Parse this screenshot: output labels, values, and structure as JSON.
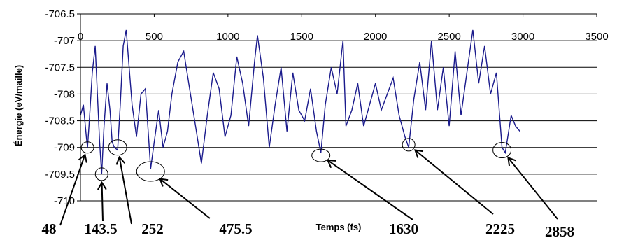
{
  "chart_data": {
    "type": "line",
    "xlabel": "Temps (fs)",
    "ylabel": "Énergie (eV/maille)",
    "xlim": [
      0,
      3500
    ],
    "ylim": [
      -710,
      -706.5
    ],
    "x_ticks": [
      "0",
      "500",
      "1000",
      "1500",
      "2000",
      "2500",
      "3000",
      "3500"
    ],
    "y_ticks": [
      "-706.5",
      "-707",
      "-707.5",
      "-708",
      "-708.5",
      "-709",
      "-709.5",
      "-710"
    ],
    "grid": "horizontal",
    "line_color": "#1a1a8c",
    "series": [
      {
        "x": [
          0,
          20,
          40,
          48,
          60,
          80,
          100,
          115,
          130,
          143.5,
          160,
          180,
          200,
          215,
          230,
          252,
          270,
          290,
          310,
          330,
          350,
          380,
          410,
          440,
          475.5,
          500,
          530,
          560,
          590,
          620,
          660,
          700,
          740,
          780,
          820,
          860,
          900,
          940,
          980,
          1020,
          1060,
          1100,
          1140,
          1180,
          1200,
          1240,
          1280,
          1320,
          1360,
          1400,
          1440,
          1480,
          1520,
          1560,
          1600,
          1630,
          1660,
          1700,
          1740,
          1780,
          1800,
          1840,
          1880,
          1920,
          1960,
          2000,
          2040,
          2080,
          2120,
          2160,
          2200,
          2225,
          2260,
          2300,
          2340,
          2380,
          2420,
          2460,
          2500,
          2540,
          2580,
          2620,
          2660,
          2700,
          2740,
          2780,
          2820,
          2858,
          2880,
          2920,
          2950,
          2980
        ],
        "y": [
          -708.4,
          -708.2,
          -708.8,
          -709.0,
          -708.5,
          -707.6,
          -707.1,
          -708.0,
          -708.9,
          -709.5,
          -708.6,
          -707.8,
          -708.3,
          -708.9,
          -709.0,
          -709.05,
          -708.2,
          -707.1,
          -706.8,
          -707.5,
          -708.2,
          -708.8,
          -708.0,
          -707.9,
          -709.4,
          -708.9,
          -708.3,
          -709.0,
          -708.7,
          -708.0,
          -707.4,
          -707.2,
          -707.9,
          -708.6,
          -709.3,
          -708.4,
          -707.6,
          -707.9,
          -708.8,
          -708.4,
          -707.3,
          -707.8,
          -708.6,
          -707.4,
          -706.9,
          -707.7,
          -709.0,
          -708.2,
          -707.5,
          -708.7,
          -707.6,
          -708.3,
          -708.5,
          -707.9,
          -708.7,
          -709.1,
          -708.2,
          -707.5,
          -708.0,
          -707.0,
          -708.6,
          -708.3,
          -707.8,
          -708.6,
          -708.2,
          -707.8,
          -708.3,
          -708.0,
          -707.7,
          -708.4,
          -708.8,
          -709.0,
          -708.1,
          -707.4,
          -708.3,
          -707.0,
          -708.3,
          -707.5,
          -708.6,
          -707.2,
          -708.4,
          -707.6,
          -706.8,
          -707.8,
          -707.1,
          -708.0,
          -707.6,
          -709.0,
          -709.1,
          -708.4,
          -708.6,
          -708.7
        ]
      }
    ],
    "annotations": [
      {
        "label": "48",
        "x": 48,
        "y": -709.0
      },
      {
        "label": "143.5",
        "x": 143.5,
        "y": -709.5
      },
      {
        "label": "252",
        "x": 252,
        "y": -709.0
      },
      {
        "label": "475.5",
        "x": 475.5,
        "y": -709.45
      },
      {
        "label": "1630",
        "x": 1630,
        "y": -709.15
      },
      {
        "label": "2225",
        "x": 2225,
        "y": -708.95
      },
      {
        "label": "2858",
        "x": 2858,
        "y": -709.05
      }
    ]
  }
}
